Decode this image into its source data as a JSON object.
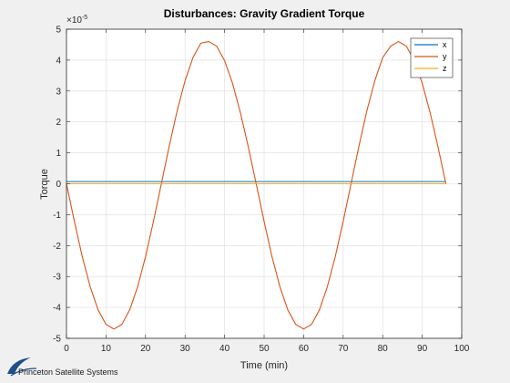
{
  "chart_data": {
    "type": "line",
    "title": "Disturbances: Gravity Gradient Torque",
    "xlabel": "Time (min)",
    "ylabel": "Torque",
    "xlim": [
      0,
      100
    ],
    "ylim": [
      -5,
      5
    ],
    "y_exponent_label": "×10",
    "y_exponent_power": "-5",
    "xticks": [
      0,
      10,
      20,
      30,
      40,
      50,
      60,
      70,
      80,
      90,
      100
    ],
    "yticks": [
      -5,
      -4,
      -3,
      -2,
      -1,
      0,
      1,
      2,
      3,
      4,
      5
    ],
    "grid": true,
    "legend_position": "top-right",
    "series": [
      {
        "name": "x",
        "color": "#0072BD",
        "x": [
          0,
          96
        ],
        "y": [
          0.07,
          0.07
        ]
      },
      {
        "name": "y",
        "color": "#D95319",
        "x": [
          0,
          2,
          4,
          6,
          8,
          10,
          12,
          14,
          16,
          18,
          20,
          22,
          24,
          26,
          28,
          30,
          32,
          34,
          36,
          38,
          40,
          42,
          44,
          46,
          48,
          50,
          52,
          54,
          56,
          58,
          60,
          62,
          64,
          66,
          68,
          70,
          72,
          74,
          76,
          78,
          80,
          82,
          84,
          86,
          88,
          90,
          92,
          94,
          96
        ],
        "y": [
          0.0,
          -1.22,
          -2.36,
          -3.33,
          -4.08,
          -4.55,
          -4.7,
          -4.55,
          -4.08,
          -3.33,
          -2.36,
          -1.22,
          0.0,
          1.22,
          2.36,
          3.33,
          4.08,
          4.55,
          4.6,
          4.45,
          3.98,
          3.25,
          2.3,
          1.19,
          0.0,
          -1.22,
          -2.36,
          -3.33,
          -4.08,
          -4.55,
          -4.7,
          -4.55,
          -4.08,
          -3.33,
          -2.36,
          -1.22,
          0.0,
          1.22,
          2.36,
          3.33,
          4.08,
          4.45,
          4.6,
          4.45,
          3.98,
          3.25,
          2.3,
          1.19,
          0.0
        ]
      },
      {
        "name": "z",
        "color": "#EDB120",
        "x": [
          0,
          96
        ],
        "y": [
          0.0,
          0.0
        ]
      }
    ]
  },
  "footer": {
    "logo_text": "Princeton Satellite Systems"
  }
}
